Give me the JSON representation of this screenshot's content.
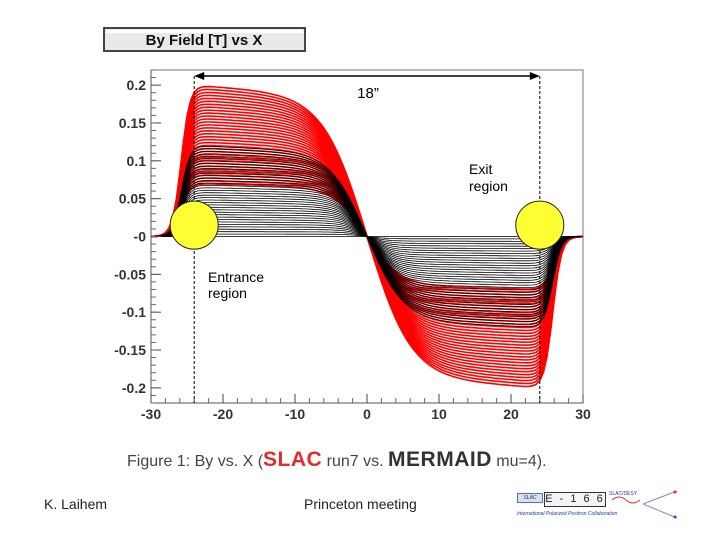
{
  "chart_data": {
    "type": "line",
    "title": "By Field [T] vs X",
    "xlabel": "",
    "ylabel": "",
    "xlim": [
      -30,
      30
    ],
    "ylim": [
      -0.22,
      0.22
    ],
    "x_ticks": [
      -30,
      -20,
      -10,
      0,
      10,
      20,
      30
    ],
    "x_tick_labels": [
      "-30",
      "-20",
      "-10",
      "0",
      "10",
      "20",
      "30"
    ],
    "y_ticks": [
      0.2,
      0.15,
      0.1,
      0.05,
      0,
      -0.05,
      -0.1,
      -0.15,
      -0.2
    ],
    "y_tick_labels": [
      "0.2",
      "0.15",
      "0.1",
      "0.05",
      "-0",
      "-0.05",
      "-0.1",
      "-0.15",
      "-0.2"
    ],
    "series": [
      {
        "name": "MERMAID mu=4",
        "color": "#ff0000",
        "count": 34,
        "amp_range": [
          0.07,
          0.2
        ],
        "center_width": [
          4.5,
          6
        ]
      },
      {
        "name": "SLAC run7",
        "color": "#000000",
        "count": 38,
        "amp_range": [
          0.0,
          0.12
        ],
        "center_width": [
          2.5,
          5
        ]
      }
    ],
    "annotations": {
      "span_label": "18”",
      "span_from": -24,
      "span_to": 24,
      "entrance_label": [
        "Entrance",
        "region"
      ],
      "exit_label": [
        "Exit",
        "region"
      ],
      "entrance_marker": {
        "x": -24,
        "y": 0.015
      },
      "exit_marker": {
        "x": 24,
        "y": 0.015
      }
    }
  },
  "caption": {
    "prefix": "Figure 1: By vs. X (",
    "slac": "SLAC",
    "middle": " run7 vs. ",
    "mermaid": "MERMAID",
    "suffix": " mu=4)."
  },
  "footer": {
    "author": "K. Laihem",
    "meeting": "Princeton meeting",
    "logo_badge": "SLAC",
    "logo_experiment": "E - 1 6 6",
    "logo_small": "SLAC/DESY",
    "logo_collaboration": "International Polarized Positron Collaboration"
  },
  "colors": {
    "accent_red": "#ff0000",
    "marker_yellow": "#ffff33",
    "title_box_bg": "#e9e9e9"
  }
}
